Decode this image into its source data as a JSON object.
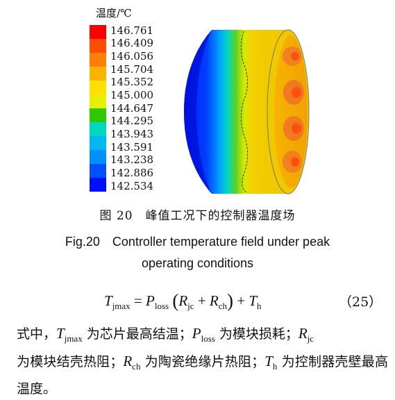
{
  "legend": {
    "title": "温度/℃",
    "values": [
      "146.761",
      "146.409",
      "146.056",
      "145.704",
      "145.352",
      "145.000",
      "144.647",
      "144.295",
      "143.943",
      "143.591",
      "143.238",
      "142.886",
      "142.534"
    ],
    "colors": [
      "#ff0000",
      "#ff4d00",
      "#ff8000",
      "#ffb300",
      "#ffe000",
      "#e8f000",
      "#2ec800",
      "#00d8c0",
      "#00b8f0",
      "#0090ff",
      "#0050ff",
      "#0010ff"
    ]
  },
  "caption": {
    "cn": "图 20　峰值工况下的控制器温度场",
    "en_line1": "Fig.20　Controller temperature field under peak",
    "en_line2": "operating conditions"
  },
  "equation": {
    "lhs": "T",
    "lhs_sub": "jmax",
    "p": "P",
    "p_sub": "loss",
    "r1": "R",
    "r1_sub": "jc",
    "r2": "R",
    "r2_sub": "ch",
    "t": "T",
    "t_sub": "h",
    "number": "（25）"
  },
  "paragraph": {
    "t1": "式中，",
    "v1": "T",
    "s1": "jmax",
    "t2": " 为芯片最高结温；",
    "v2": "P",
    "s2": "loss",
    "t3": " 为模块损耗；",
    "v3": "R",
    "s3": "jc",
    "t4": "为模块结壳热阻；",
    "v4": "R",
    "s4": "ch",
    "t5": " 为陶瓷绝缘片热阻；",
    "v5": "T",
    "s5": "h",
    "t6": " 为控制器壳壁最高温度。"
  }
}
